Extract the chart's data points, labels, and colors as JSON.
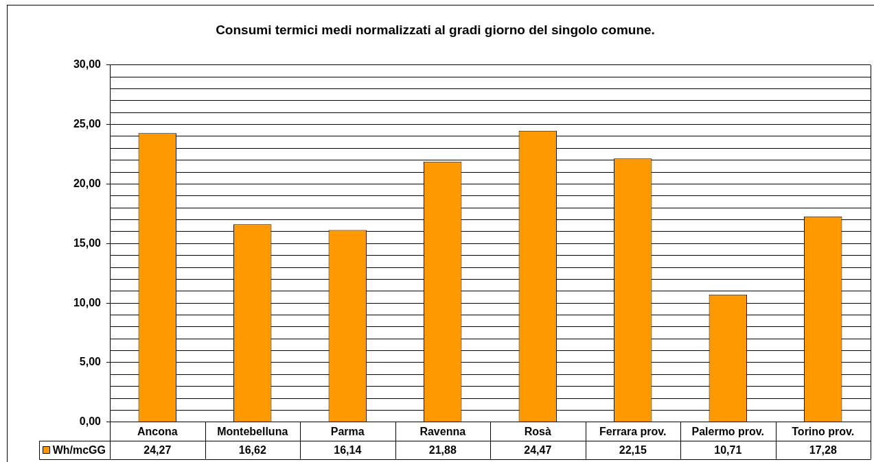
{
  "chart_data": {
    "type": "bar",
    "title": "Consumi termici medi normalizzati al gradi giorno del singolo comune.",
    "categories": [
      "Ancona",
      "Montebelluna",
      "Parma",
      "Ravenna",
      "Rosà",
      "Ferrara prov.",
      "Palermo prov.",
      "Torino prov."
    ],
    "series": [
      {
        "name": "Wh/mcGG",
        "color": "#ff9900",
        "values": [
          24.27,
          16.62,
          16.14,
          21.88,
          24.47,
          22.15,
          10.71,
          17.28
        ],
        "value_labels": [
          "24,27",
          "16,62",
          "16,14",
          "21,88",
          "24,47",
          "22,15",
          "10,71",
          "17,28"
        ]
      }
    ],
    "ylim": [
      0,
      30
    ],
    "yticks": [
      {
        "value": 0,
        "label": "0,00"
      },
      {
        "value": 1,
        "label": null
      },
      {
        "value": 2,
        "label": null
      },
      {
        "value": 3,
        "label": null
      },
      {
        "value": 4,
        "label": null
      },
      {
        "value": 5,
        "label": "5,00"
      },
      {
        "value": 6,
        "label": null
      },
      {
        "value": 7,
        "label": null
      },
      {
        "value": 8,
        "label": null
      },
      {
        "value": 9,
        "label": null
      },
      {
        "value": 10,
        "label": "10,00"
      },
      {
        "value": 11,
        "label": null
      },
      {
        "value": 12,
        "label": null
      },
      {
        "value": 13,
        "label": null
      },
      {
        "value": 14,
        "label": null
      },
      {
        "value": 15,
        "label": "15,00"
      },
      {
        "value": 16,
        "label": null
      },
      {
        "value": 17,
        "label": null
      },
      {
        "value": 18,
        "label": null
      },
      {
        "value": 19,
        "label": null
      },
      {
        "value": 20,
        "label": "20,00"
      },
      {
        "value": 21,
        "label": null
      },
      {
        "value": 22,
        "label": null
      },
      {
        "value": 23,
        "label": null
      },
      {
        "value": 24,
        "label": null
      },
      {
        "value": 25,
        "label": "25,00"
      },
      {
        "value": 26,
        "label": null
      },
      {
        "value": 27,
        "label": null
      },
      {
        "value": 28,
        "label": null
      },
      {
        "value": 29,
        "label": null
      },
      {
        "value": 30,
        "label": "30,00"
      }
    ],
    "grid": "y",
    "legend": "bottom left"
  }
}
